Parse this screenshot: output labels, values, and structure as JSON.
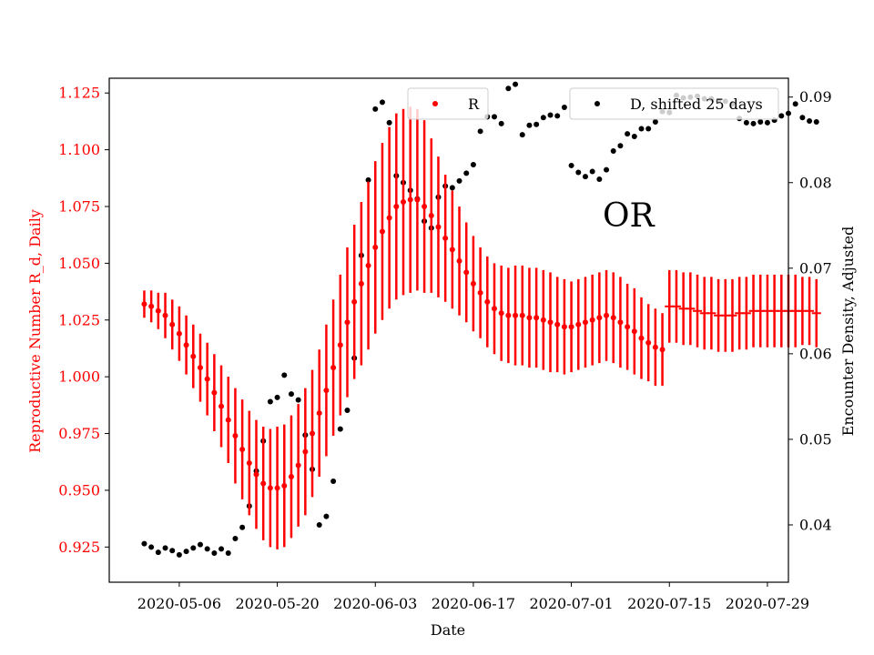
{
  "chart_data": {
    "type": "scatter",
    "xlabel": "Date",
    "ylabel_left": "Reproductive Number R_d, Daily",
    "ylabel_right": "Encounter Density, Adjusted",
    "annotation": "OR",
    "x_range": [
      "2020-04-26",
      "2020-08-01"
    ],
    "y_left_range": [
      0.9095,
      1.1315
    ],
    "y_right_range": [
      0.0333,
      0.0922
    ],
    "x_ticks": [
      "2020-05-06",
      "2020-05-20",
      "2020-06-03",
      "2020-06-17",
      "2020-07-01",
      "2020-07-15",
      "2020-07-29"
    ],
    "y_left_ticks": [
      "0.925",
      "0.950",
      "0.975",
      "1.000",
      "1.025",
      "1.050",
      "1.075",
      "1.100",
      "1.125"
    ],
    "y_right_ticks": [
      "0.04",
      "0.05",
      "0.06",
      "0.07",
      "0.08",
      "0.09"
    ],
    "grid": false,
    "colors": {
      "R": "#ff0000",
      "D": "#000000",
      "left_axis": "#ff0000"
    },
    "legend": [
      {
        "label": "R",
        "color": "#ff0000",
        "placement": "upper-center"
      },
      {
        "label": "D, shifted 25 days",
        "color": "#000000",
        "placement": "upper-right"
      }
    ],
    "series_R": {
      "name": "R",
      "start": "2020-05-01",
      "values": [
        1.032,
        1.031,
        1.029,
        1.027,
        1.023,
        1.019,
        1.014,
        1.009,
        1.004,
        0.999,
        0.993,
        0.987,
        0.981,
        0.974,
        0.968,
        0.962,
        0.957,
        0.953,
        0.951,
        0.951,
        0.952,
        0.956,
        0.961,
        0.967,
        0.975,
        0.984,
        0.994,
        1.004,
        1.014,
        1.024,
        1.033,
        1.041,
        1.049,
        1.057,
        1.064,
        1.07,
        1.075,
        1.077,
        1.078,
        1.078,
        1.075,
        1.071,
        1.066,
        1.061,
        1.056,
        1.051,
        1.046,
        1.041,
        1.037,
        1.033,
        1.03,
        1.028,
        1.027,
        1.027,
        1.027,
        1.026,
        1.026,
        1.025,
        1.024,
        1.023,
        1.022,
        1.022,
        1.023,
        1.024,
        1.025,
        1.026,
        1.027,
        1.026,
        1.024,
        1.022,
        1.02,
        1.017,
        1.015,
        1.013,
        1.012
      ],
      "half_error": [
        0.006,
        0.007,
        0.008,
        0.01,
        0.011,
        0.012,
        0.013,
        0.014,
        0.015,
        0.016,
        0.017,
        0.018,
        0.019,
        0.021,
        0.022,
        0.023,
        0.024,
        0.025,
        0.026,
        0.027,
        0.027,
        0.027,
        0.027,
        0.028,
        0.028,
        0.028,
        0.029,
        0.03,
        0.031,
        0.033,
        0.034,
        0.036,
        0.037,
        0.038,
        0.039,
        0.04,
        0.041,
        0.041,
        0.041,
        0.04,
        0.038,
        0.034,
        0.031,
        0.028,
        0.026,
        0.024,
        0.022,
        0.021,
        0.02,
        0.02,
        0.02,
        0.021,
        0.021,
        0.022,
        0.022,
        0.022,
        0.022,
        0.022,
        0.022,
        0.021,
        0.021,
        0.02,
        0.02,
        0.02,
        0.02,
        0.02,
        0.02,
        0.02,
        0.02,
        0.019,
        0.019,
        0.018,
        0.017,
        0.017,
        0.016
      ]
    },
    "series_R_projection": {
      "start": "2020-07-15",
      "values": [
        1.031,
        1.031,
        1.03,
        1.03,
        1.029,
        1.028,
        1.028,
        1.027,
        1.027,
        1.027,
        1.028,
        1.028,
        1.029,
        1.029,
        1.029,
        1.029,
        1.029,
        1.029,
        1.029,
        1.029,
        1.029,
        1.028
      ],
      "half_error": [
        0.016,
        0.016,
        0.016,
        0.016,
        0.016,
        0.016,
        0.016,
        0.016,
        0.016,
        0.016,
        0.016,
        0.016,
        0.016,
        0.016,
        0.016,
        0.016,
        0.016,
        0.016,
        0.016,
        0.015,
        0.015,
        0.015
      ]
    },
    "series_D": {
      "name": "D, shifted 25 days",
      "start": "2020-05-01",
      "values": [
        0.0378,
        0.0374,
        0.0368,
        0.0373,
        0.037,
        0.0365,
        0.0369,
        0.0373,
        0.0377,
        0.0372,
        0.0367,
        0.0372,
        0.0367,
        0.0384,
        0.0397,
        0.0422,
        0.0463,
        0.0498,
        0.0544,
        0.0549,
        0.0575,
        0.0553,
        0.0546,
        0.0505,
        0.0465,
        0.04,
        0.041,
        0.0451,
        0.0512,
        0.0534,
        0.0595,
        0.0715,
        0.0803,
        0.0886,
        0.0894,
        0.087,
        0.0808,
        0.08,
        0.0791,
        0.0781,
        0.0755,
        0.0747,
        0.0783,
        0.0796,
        0.0794,
        0.0802,
        0.0811,
        0.0821,
        0.086,
        0.0877,
        0.0877,
        0.0869,
        0.091,
        0.0915,
        0.0856,
        0.0867,
        0.0868,
        0.0876,
        0.0879,
        0.0878,
        0.0888,
        0.082,
        0.0812,
        0.0807,
        0.0813,
        0.0804,
        0.0815,
        0.0837,
        0.0843,
        0.0857,
        0.0854,
        0.0863,
        0.0863,
        0.0871,
        0.0883,
        0.0882,
        0.0902,
        0.0899,
        0.09,
        0.0901,
        0.0898,
        0.0898,
        0.0895,
        0.0895,
        0.0892,
        0.0875,
        0.087,
        0.0869,
        0.0871,
        0.087,
        0.0873,
        0.0878,
        0.0881,
        0.0892,
        0.0876,
        0.0872,
        0.0871
      ]
    }
  }
}
